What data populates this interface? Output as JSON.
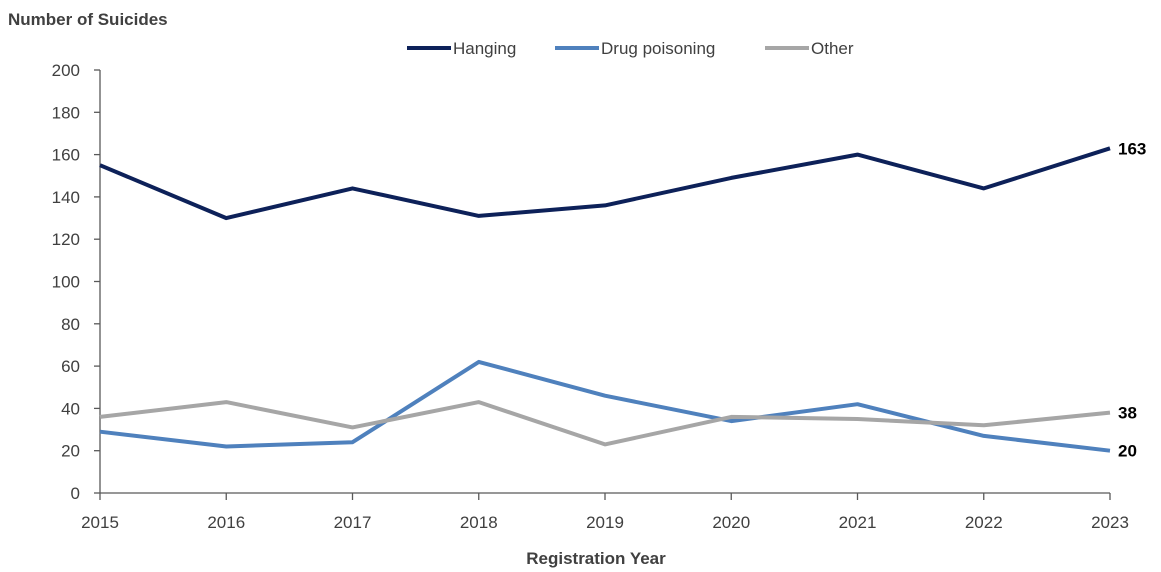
{
  "chart_data": {
    "type": "line",
    "ylabel": "Number of Suicides",
    "xlabel": "Registration Year",
    "ylim": [
      0,
      200
    ],
    "yticks": [
      0,
      20,
      40,
      60,
      80,
      100,
      120,
      140,
      160,
      180,
      200
    ],
    "categories": [
      "2015",
      "2016",
      "2017",
      "2018",
      "2019",
      "2020",
      "2021",
      "2022",
      "2023"
    ],
    "grid": false,
    "legend_position": "top",
    "series": [
      {
        "name": "Hanging",
        "color": "#0d2159",
        "values": [
          155,
          130,
          144,
          131,
          136,
          149,
          160,
          144,
          163
        ],
        "end_label": "163"
      },
      {
        "name": "Drug poisoning",
        "color": "#4f81bd",
        "values": [
          29,
          22,
          24,
          62,
          46,
          34,
          42,
          27,
          20
        ],
        "end_label": "20"
      },
      {
        "name": "Other",
        "color": "#a6a6a6",
        "values": [
          36,
          43,
          31,
          43,
          23,
          36,
          35,
          32,
          38
        ],
        "end_label": "38"
      }
    ]
  }
}
